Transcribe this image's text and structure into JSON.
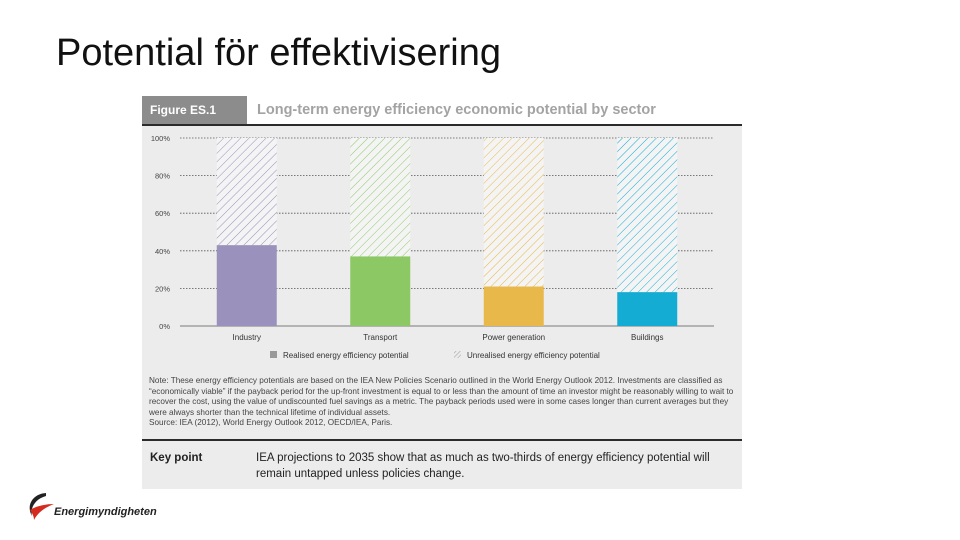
{
  "slide": {
    "title": "Potential för effektivisering"
  },
  "figure": {
    "label": "Figure ES.1",
    "title": "Long-term energy efficiency economic potential by sector",
    "note": "Note: These energy efficiency potentials are based on the IEA New Policies Scenario outlined in the World Energy Outlook 2012. Investments are classified as “economically viable” if the payback period for the up-front investment is equal to or less than the amount of time an investor might be reasonably willing to wait to recover the cost, using the value of undiscounted fuel savings as a metric. The payback periods used were in some cases longer than current averages but they were always shorter than the technical lifetime of individual assets.",
    "source": "Source: IEA (2012), World Energy Outlook 2012, OECD/IEA, Paris.",
    "key_point_label": "Key point",
    "key_point_text": "IEA projections to 2035 show that as much as two-thirds of energy efficiency potential will remain untapped unless policies change."
  },
  "chart_data": {
    "type": "bar",
    "stacked": true,
    "categories": [
      "Industry",
      "Transport",
      "Power generation",
      "Buildings"
    ],
    "series": [
      {
        "name": "Realised energy efficiency potential",
        "values": [
          43,
          37,
          21,
          18
        ]
      },
      {
        "name": "Unrealised energy efficiency potential",
        "values": [
          57,
          63,
          79,
          82
        ]
      }
    ],
    "category_colors": [
      "#9b91bd",
      "#8cc864",
      "#e9b84a",
      "#14acd2"
    ],
    "y_ticks": [
      "0%",
      "20%",
      "40%",
      "60%",
      "80%",
      "100%"
    ],
    "ylim": [
      0,
      100
    ],
    "grid": true,
    "legend_position": "bottom"
  },
  "brand": {
    "logo_text": "Energimyndigheten",
    "logo_color": "#d52b1e"
  }
}
